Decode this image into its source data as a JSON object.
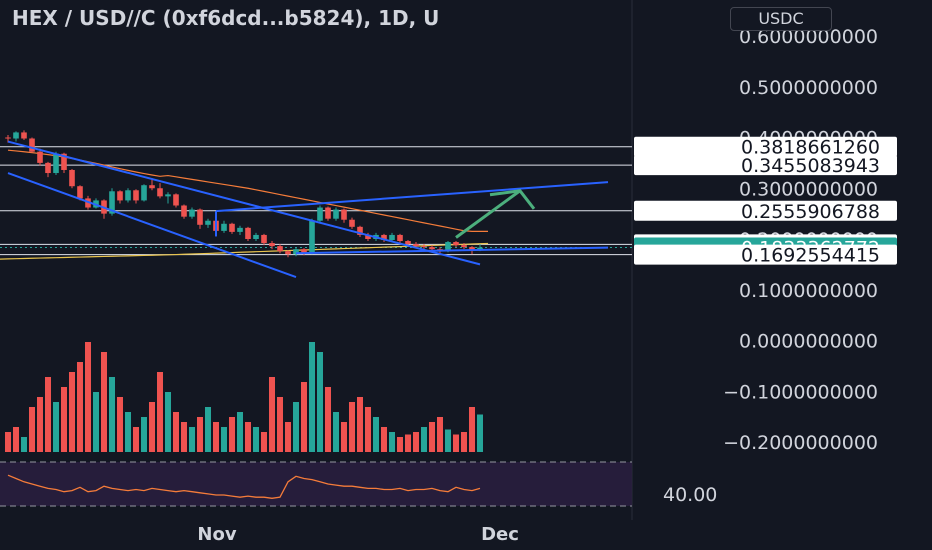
{
  "header": {
    "title": "HEX / USD//C (0xf6dcd...b5824), 1D, U",
    "currency": "USDC"
  },
  "chart_data": {
    "type": "candlestick",
    "y_axis": {
      "ticks": [
        "0.6000000000",
        "0.5000000000",
        "0.4000000000",
        "0.3000000000",
        "0.2000000000",
        "0.1000000000",
        "0.0000000000",
        "−0.1000000000",
        "−0.2000000000"
      ],
      "ylim": [
        -0.22,
        0.62
      ]
    },
    "x_axis": {
      "labels": [
        "Nov",
        "Dec"
      ]
    },
    "horizontal_levels": [
      0.381866126,
      0.3455083943,
      0.2555906788,
      0.189512676,
      0.1692554415
    ],
    "price_labels": [
      {
        "value": 0.381866126,
        "text": "0.3818661260",
        "style": "white"
      },
      {
        "value": 0.3455083943,
        "text": "0.3455083943",
        "style": "white"
      },
      {
        "value": 0.2555906788,
        "text": "0.2555906788",
        "style": "white"
      },
      {
        "value": 0.189512676,
        "text": "0.1895126760",
        "style": "white"
      },
      {
        "value": 0.1833362772,
        "text": "0.1833362772",
        "style": "current"
      },
      {
        "value": 0.1692554415,
        "text": "0.1692554415",
        "style": "white"
      }
    ],
    "candles": [
      [
        0.4,
        0.405,
        0.39,
        0.398
      ],
      [
        0.398,
        0.412,
        0.392,
        0.41
      ],
      [
        0.41,
        0.414,
        0.395,
        0.398
      ],
      [
        0.398,
        0.4,
        0.37,
        0.372
      ],
      [
        0.372,
        0.378,
        0.345,
        0.35
      ],
      [
        0.35,
        0.352,
        0.322,
        0.33
      ],
      [
        0.33,
        0.372,
        0.326,
        0.368
      ],
      [
        0.368,
        0.37,
        0.33,
        0.336
      ],
      [
        0.336,
        0.338,
        0.3,
        0.304
      ],
      [
        0.304,
        0.306,
        0.276,
        0.28
      ],
      [
        0.28,
        0.285,
        0.258,
        0.262
      ],
      [
        0.262,
        0.28,
        0.26,
        0.276
      ],
      [
        0.276,
        0.278,
        0.24,
        0.25
      ],
      [
        0.25,
        0.3,
        0.246,
        0.294
      ],
      [
        0.294,
        0.296,
        0.27,
        0.276
      ],
      [
        0.276,
        0.3,
        0.272,
        0.296
      ],
      [
        0.296,
        0.298,
        0.27,
        0.276
      ],
      [
        0.276,
        0.308,
        0.274,
        0.306
      ],
      [
        0.306,
        0.32,
        0.296,
        0.3
      ],
      [
        0.3,
        0.31,
        0.28,
        0.284
      ],
      [
        0.284,
        0.292,
        0.27,
        0.288
      ],
      [
        0.288,
        0.29,
        0.262,
        0.266
      ],
      [
        0.266,
        0.268,
        0.24,
        0.244
      ],
      [
        0.244,
        0.262,
        0.24,
        0.258
      ],
      [
        0.258,
        0.26,
        0.22,
        0.228
      ],
      [
        0.228,
        0.24,
        0.222,
        0.236
      ],
      [
        0.236,
        0.238,
        0.212,
        0.216
      ],
      [
        0.216,
        0.236,
        0.212,
        0.23
      ],
      [
        0.23,
        0.232,
        0.21,
        0.214
      ],
      [
        0.214,
        0.226,
        0.208,
        0.222
      ],
      [
        0.222,
        0.224,
        0.196,
        0.2
      ],
      [
        0.2,
        0.212,
        0.196,
        0.208
      ],
      [
        0.208,
        0.21,
        0.188,
        0.192
      ],
      [
        0.192,
        0.196,
        0.18,
        0.186
      ],
      [
        0.186,
        0.19,
        0.172,
        0.176
      ],
      [
        0.176,
        0.178,
        0.164,
        0.17
      ],
      [
        0.17,
        0.184,
        0.166,
        0.18
      ],
      [
        0.18,
        0.182,
        0.168,
        0.172
      ],
      [
        0.172,
        0.24,
        0.17,
        0.236
      ],
      [
        0.236,
        0.266,
        0.232,
        0.262
      ],
      [
        0.262,
        0.264,
        0.236,
        0.24
      ],
      [
        0.24,
        0.262,
        0.236,
        0.258
      ],
      [
        0.258,
        0.26,
        0.232,
        0.238
      ],
      [
        0.238,
        0.242,
        0.22,
        0.224
      ],
      [
        0.224,
        0.226,
        0.204,
        0.208
      ],
      [
        0.208,
        0.212,
        0.196,
        0.2
      ],
      [
        0.2,
        0.212,
        0.196,
        0.208
      ],
      [
        0.208,
        0.21,
        0.194,
        0.198
      ],
      [
        0.198,
        0.212,
        0.196,
        0.208
      ],
      [
        0.208,
        0.21,
        0.192,
        0.196
      ],
      [
        0.196,
        0.198,
        0.186,
        0.19
      ],
      [
        0.19,
        0.194,
        0.182,
        0.186
      ],
      [
        0.186,
        0.19,
        0.18,
        0.184
      ],
      [
        0.184,
        0.188,
        0.176,
        0.18
      ],
      [
        0.18,
        0.184,
        0.172,
        0.176
      ],
      [
        0.176,
        0.196,
        0.174,
        0.194
      ],
      [
        0.194,
        0.196,
        0.184,
        0.188
      ],
      [
        0.188,
        0.192,
        0.18,
        0.184
      ],
      [
        0.184,
        0.186,
        0.17,
        0.178
      ],
      [
        0.178,
        0.19,
        0.176,
        0.183
      ]
    ],
    "volumes": [
      8,
      10,
      6,
      18,
      22,
      30,
      20,
      26,
      32,
      36,
      44,
      24,
      40,
      30,
      22,
      16,
      10,
      14,
      20,
      32,
      24,
      16,
      12,
      10,
      14,
      18,
      12,
      10,
      14,
      16,
      12,
      10,
      8,
      30,
      22,
      12,
      20,
      28,
      44,
      40,
      26,
      16,
      12,
      20,
      22,
      18,
      14,
      10,
      8,
      6,
      7,
      8,
      10,
      12,
      14,
      9,
      7,
      8,
      18,
      15
    ],
    "volume_colors": [
      "red",
      "red",
      "teal",
      "red",
      "red",
      "red",
      "teal",
      "red",
      "red",
      "red",
      "red",
      "teal",
      "red",
      "teal",
      "red",
      "teal",
      "red",
      "teal",
      "red",
      "red",
      "teal",
      "red",
      "red",
      "teal",
      "red",
      "teal",
      "red",
      "teal",
      "red",
      "teal",
      "red",
      "teal",
      "red",
      "red",
      "red",
      "red",
      "teal",
      "red",
      "teal",
      "teal",
      "red",
      "teal",
      "red",
      "red",
      "red",
      "red",
      "teal",
      "red",
      "teal",
      "red",
      "red",
      "red",
      "teal",
      "red",
      "red",
      "teal",
      "red",
      "red",
      "red",
      "teal"
    ],
    "indicator": {
      "label": "40.00",
      "values": [
        58,
        55,
        52,
        50,
        48,
        46,
        45,
        43,
        44,
        47,
        43,
        44,
        48,
        46,
        45,
        44,
        45,
        44,
        46,
        45,
        44,
        43,
        44,
        43,
        42,
        41,
        40,
        40,
        39,
        38,
        39,
        38,
        38,
        37,
        38,
        52,
        57,
        55,
        54,
        52,
        50,
        49,
        48,
        48,
        47,
        46,
        46,
        45,
        45,
        46,
        44,
        45,
        45,
        46,
        44,
        43,
        47,
        45,
        44,
        46
      ]
    },
    "annotations": {
      "channel_upper_start": [
        0,
        0.392
      ],
      "channel_upper_end": [
        59,
        0.15
      ],
      "channel_lower_start": [
        0,
        0.33
      ],
      "channel_lower_end": [
        36,
        0.125
      ],
      "flag_upper_start": [
        26,
        0.255
      ],
      "flag_upper_end": [
        75,
        0.312
      ],
      "flag_lower_start": [
        36,
        0.172
      ],
      "flag_lower_end": [
        75,
        0.183
      ],
      "arrow_start": [
        56,
        0.203
      ],
      "arrow_end": [
        64,
        0.295
      ]
    }
  }
}
